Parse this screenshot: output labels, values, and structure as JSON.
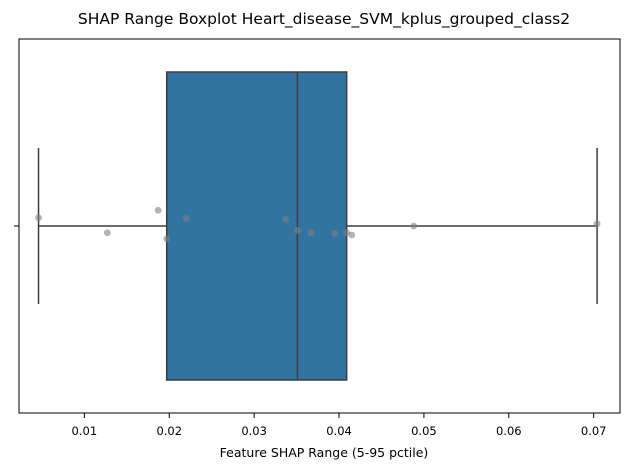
{
  "chart_data": {
    "type": "boxplot",
    "orientation": "horizontal",
    "title": "SHAP Range Boxplot Heart_disease_SVM_kplus_grouped_class2",
    "xlabel": "Feature SHAP Range (5-95 pctile)",
    "ylabel": "",
    "xlim": [
      0.0023,
      0.0731
    ],
    "x_ticks": [
      0.01,
      0.02,
      0.03,
      0.04,
      0.05,
      0.06,
      0.07
    ],
    "x_tick_labels": [
      "0.01",
      "0.02",
      "0.03",
      "0.04",
      "0.05",
      "0.06",
      "0.07"
    ],
    "grid": false,
    "box": {
      "whisker_low": 0.0046,
      "q1": 0.0197,
      "median": 0.0351,
      "q3": 0.0409,
      "whisker_high": 0.0704,
      "color": "#3274a1",
      "edge_color": "#3d3d3d"
    },
    "points": [
      {
        "x": 0.0046,
        "jitter": 0.11
      },
      {
        "x": 0.0127,
        "jitter": -0.09
      },
      {
        "x": 0.0187,
        "jitter": 0.21
      },
      {
        "x": 0.0197,
        "jitter": -0.17
      },
      {
        "x": 0.022,
        "jitter": 0.1
      },
      {
        "x": 0.0337,
        "jitter": 0.09
      },
      {
        "x": 0.0351,
        "jitter": -0.06
      },
      {
        "x": 0.0367,
        "jitter": -0.09
      },
      {
        "x": 0.0395,
        "jitter": -0.1
      },
      {
        "x": 0.0409,
        "jitter": -0.09
      },
      {
        "x": 0.0415,
        "jitter": -0.12
      },
      {
        "x": 0.0488,
        "jitter": 0.0
      },
      {
        "x": 0.0704,
        "jitter": 0.03
      }
    ],
    "point_color": "#808080"
  }
}
